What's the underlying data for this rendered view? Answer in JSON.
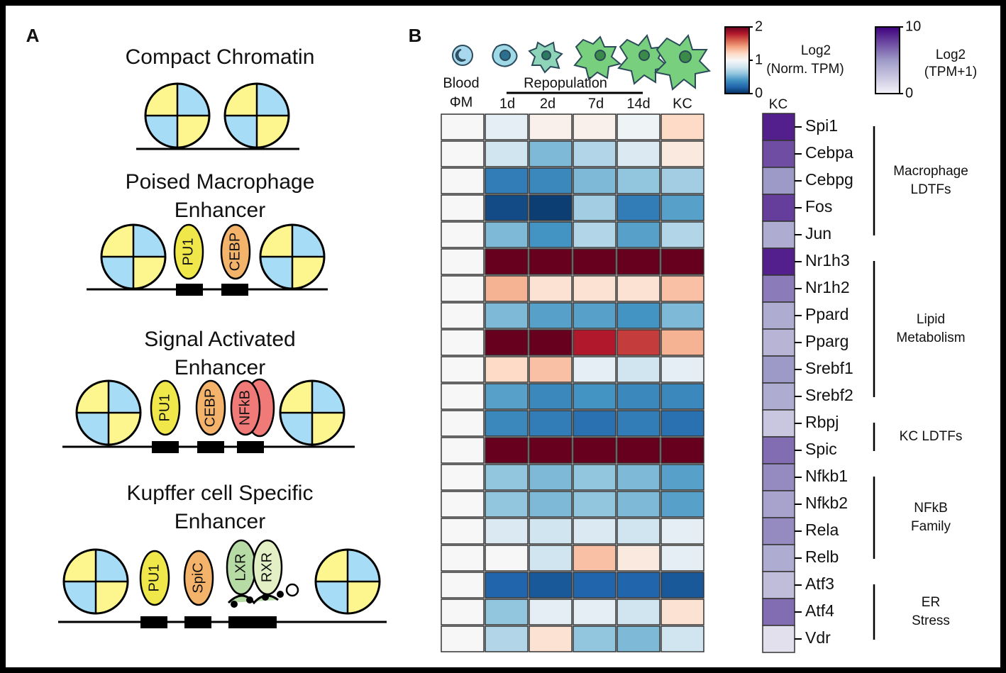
{
  "panel_a": {
    "label": "A",
    "states": [
      {
        "title": [
          "Compact Chromatin"
        ],
        "factors": []
      },
      {
        "title": [
          "Poised Macrophage",
          "Enhancer"
        ],
        "factors": [
          "PU1",
          "CEBP"
        ]
      },
      {
        "title": [
          "Signal Activated",
          "Enhancer"
        ],
        "factors": [
          "PU1",
          "CEBP",
          "NFkB"
        ]
      },
      {
        "title": [
          "Kupffer cell Specific",
          "Enhancer"
        ],
        "factors": [
          "PU1",
          "SpiC",
          "LXR",
          "RXR"
        ]
      }
    ]
  },
  "panel_b": {
    "label": "B",
    "columns": [
      [
        "Blood",
        "ΦM"
      ],
      [
        "1d"
      ],
      [
        "2d"
      ],
      [
        "7d"
      ],
      [
        "14d"
      ],
      [
        "KC"
      ]
    ],
    "repopulation": "Repopulation",
    "norm_scale": {
      "title": [
        "Log2",
        "(Norm. TPM)"
      ],
      "lim": [
        0,
        2
      ],
      "ticks": [
        0,
        1,
        2
      ]
    },
    "tpm_scale": {
      "title": [
        "Log2",
        "(TPM+1)"
      ],
      "lim": [
        0,
        10
      ],
      "ticks": [
        0,
        10
      ]
    },
    "kc_header": "KC",
    "groups": [
      {
        "label": [
          "Macrophage",
          "LDTFs"
        ],
        "genes": [
          {
            "name": "Spi1",
            "norm": [
              1,
              0.9,
              1.05,
              1.05,
              0.95,
              1.2
            ],
            "tpm": 9
          },
          {
            "name": "Cebpa",
            "norm": [
              1,
              0.8,
              0.55,
              0.7,
              0.85,
              1.1
            ],
            "tpm": 7.5
          },
          {
            "name": "Cebpg",
            "norm": [
              1,
              0.3,
              0.35,
              0.55,
              0.6,
              0.65
            ],
            "tpm": 5
          },
          {
            "name": "Fos",
            "norm": [
              1,
              0.1,
              0.05,
              0.65,
              0.3,
              0.45
            ],
            "tpm": 8
          },
          {
            "name": "Jun",
            "norm": [
              1,
              0.55,
              0.4,
              0.7,
              0.45,
              0.7
            ],
            "tpm": 4
          }
        ]
      },
      {
        "label": [
          "Lipid",
          "Metabolism"
        ],
        "genes": [
          {
            "name": "Nr1h3",
            "norm": [
              1,
              2,
              2,
              2,
              2,
              2
            ],
            "tpm": 9
          },
          {
            "name": "Nr1h2",
            "norm": [
              1,
              1.35,
              1.15,
              1.15,
              1.15,
              1.3
            ],
            "tpm": 6
          },
          {
            "name": "Ppard",
            "norm": [
              1,
              0.55,
              0.45,
              0.45,
              0.4,
              0.55
            ],
            "tpm": 4
          },
          {
            "name": "Pparg",
            "norm": [
              1,
              2,
              2,
              1.8,
              1.7,
              1.35
            ],
            "tpm": 3.5
          },
          {
            "name": "Srebf1",
            "norm": [
              1,
              1.2,
              1.3,
              0.9,
              0.8,
              0.9
            ],
            "tpm": 5
          },
          {
            "name": "Srebf2",
            "norm": [
              1,
              0.45,
              0.35,
              0.4,
              0.35,
              0.35
            ],
            "tpm": 4
          }
        ]
      },
      {
        "label": [
          "KC LDTFs"
        ],
        "genes": [
          {
            "name": "Rbpj",
            "norm": [
              1,
              0.35,
              0.3,
              0.25,
              0.3,
              0.25
            ],
            "tpm": 2.5
          },
          {
            "name": "Spic",
            "norm": [
              1,
              2,
              2,
              2,
              2,
              2
            ],
            "tpm": 6.5
          }
        ]
      },
      {
        "label": [
          "NFkB",
          "Family"
        ],
        "genes": [
          {
            "name": "Nfkb1",
            "norm": [
              1,
              0.6,
              0.55,
              0.6,
              0.55,
              0.45
            ],
            "tpm": 5.5
          },
          {
            "name": "Nfkb2",
            "norm": [
              1,
              0.6,
              0.55,
              0.6,
              0.55,
              0.45
            ],
            "tpm": 4.5
          },
          {
            "name": "Rela",
            "norm": [
              1,
              0.85,
              0.8,
              0.85,
              0.8,
              0.9
            ],
            "tpm": 5.5
          },
          {
            "name": "Relb",
            "norm": [
              1,
              1.0,
              0.8,
              1.3,
              1.1,
              0.9
            ],
            "tpm": 4
          }
        ]
      },
      {
        "label": [
          "ER",
          "Stress"
        ],
        "genes": [
          {
            "name": "Atf3",
            "norm": [
              1,
              0.2,
              0.15,
              0.2,
              0.2,
              0.15
            ],
            "tpm": 3
          },
          {
            "name": "Atf4",
            "norm": [
              1,
              0.6,
              0.9,
              0.9,
              0.8,
              1.15
            ],
            "tpm": 6.5
          },
          {
            "name": "Vdr",
            "norm": [
              1,
              0.7,
              1.15,
              0.6,
              0.55,
              0.8
            ],
            "tpm": 1
          }
        ]
      }
    ]
  }
}
